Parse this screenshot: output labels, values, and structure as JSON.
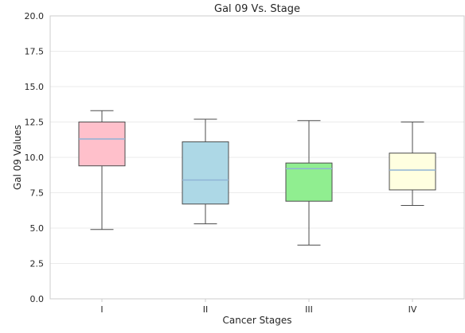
{
  "chart_data": {
    "type": "box",
    "title": "Gal 09 Vs. Stage",
    "xlabel": "Cancer Stages",
    "ylabel": "Gal 09 Values",
    "ylim": [
      0,
      20
    ],
    "yticks": [
      "0.0",
      "2.5",
      "5.0",
      "7.5",
      "10.0",
      "12.5",
      "15.0",
      "17.5",
      "20.0"
    ],
    "grid": true,
    "categories": [
      "I",
      "II",
      "III",
      "IV"
    ],
    "boxes": [
      {
        "category": "I",
        "whisker_low": 4.9,
        "q1": 9.4,
        "median": 11.3,
        "q3": 12.5,
        "whisker_high": 13.3,
        "color": "#ffc0cb"
      },
      {
        "category": "II",
        "whisker_low": 5.3,
        "q1": 6.7,
        "median": 8.4,
        "q3": 11.1,
        "whisker_high": 12.7,
        "color": "#add8e6"
      },
      {
        "category": "III",
        "whisker_low": 3.8,
        "q1": 6.9,
        "median": 9.2,
        "q3": 9.6,
        "whisker_high": 12.6,
        "color": "#90ee90"
      },
      {
        "category": "IV",
        "whisker_low": 6.6,
        "q1": 7.7,
        "median": 9.1,
        "q3": 10.3,
        "whisker_high": 12.5,
        "color": "#ffffe0"
      }
    ],
    "median_color": "#8fb3d6",
    "box_edge_color": "#4d4d4d"
  }
}
